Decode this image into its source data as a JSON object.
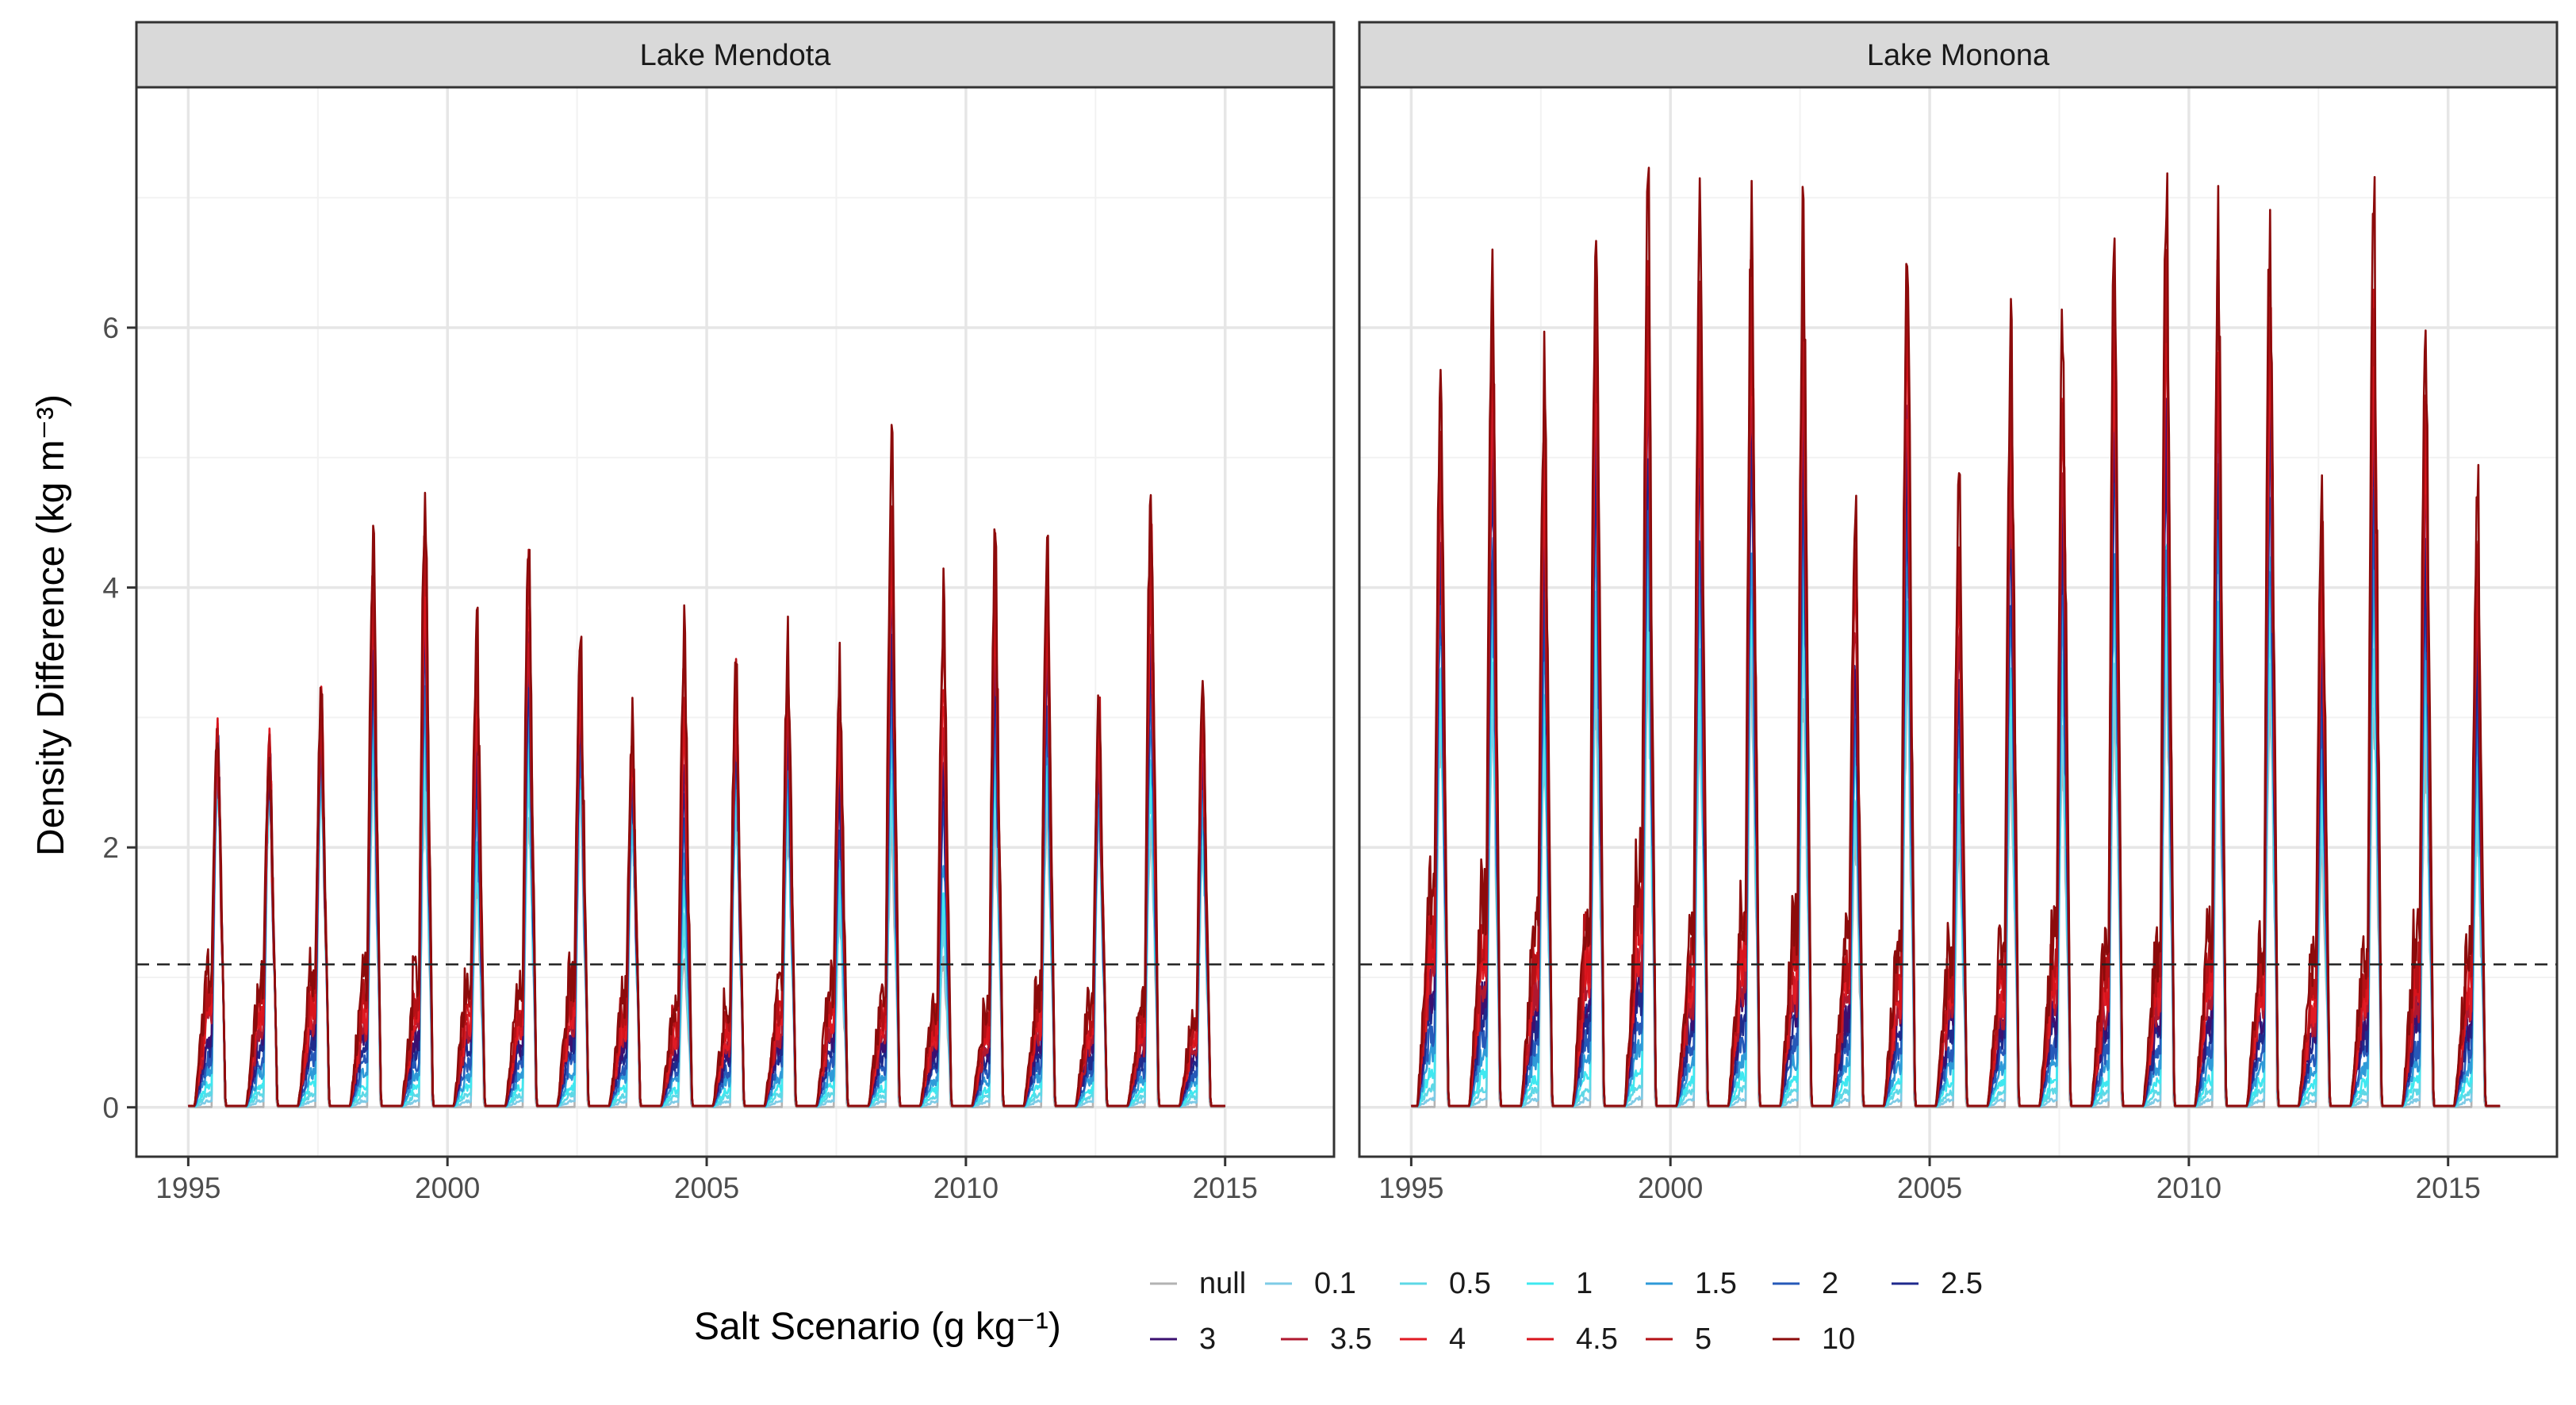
{
  "colors": {
    "grid_major": "#e6e6e6",
    "grid_minor": "#f2f2f2",
    "strip_fill": "#d9d9d9",
    "panel_border": "#333333",
    "threshold": "#222222"
  },
  "chart_data": {
    "type": "line",
    "facets": [
      "Lake Mendota",
      "Lake Monona"
    ],
    "xlabel": "",
    "ylabel": "Density Difference (kg m⁻³)",
    "x_ticks": [
      "1995",
      "2000",
      "2005",
      "2010",
      "2015"
    ],
    "y_ticks": [
      "0",
      "2",
      "4",
      "6"
    ],
    "xlim": [
      1994.0,
      2017.1
    ],
    "ylim": [
      -0.38,
      7.85
    ],
    "grid": true,
    "threshold_line": {
      "y": 1.1,
      "style": "dashed"
    },
    "legend": {
      "title": "Salt Scenario (g kg⁻¹)",
      "placement": "bottom",
      "entries": [
        {
          "name": "null",
          "color": "#b3b3b3"
        },
        {
          "name": "0.1",
          "color": "#7ecbe6"
        },
        {
          "name": "0.5",
          "color": "#5ed8e6"
        },
        {
          "name": "1",
          "color": "#3fe8f0"
        },
        {
          "name": "1.5",
          "color": "#2f9ad8"
        },
        {
          "name": "2",
          "color": "#2659b8"
        },
        {
          "name": "2.5",
          "color": "#1f2a8c"
        },
        {
          "name": "3",
          "color": "#3b1070"
        },
        {
          "name": "3.5",
          "color": "#b0182f"
        },
        {
          "name": "4",
          "color": "#e01b24"
        },
        {
          "name": "4.5",
          "color": "#d8141c"
        },
        {
          "name": "5",
          "color": "#b51116"
        },
        {
          "name": "10",
          "color": "#8c0b0b"
        }
      ]
    },
    "panels": [
      {
        "name": "Lake Mendota",
        "year_peaks_by_scenario_10": [
          3.1,
          3.0,
          3.4,
          4.6,
          5.15,
          3.95,
          4.7,
          3.95,
          3.2,
          3.95,
          3.7,
          3.85,
          3.7,
          5.45,
          4.2,
          4.8,
          4.65,
          3.4,
          5.3,
          3.55
        ],
        "year_peaks_null": [
          2.9,
          2.8,
          2.9,
          2.9,
          2.7,
          1.9,
          2.6,
          2.6,
          2.4,
          1.3,
          2.6,
          2.4,
          1.6,
          2.4,
          1.3,
          2.5,
          2.6,
          2.4,
          2.4,
          2.2
        ],
        "summer_baseline_by_scenario_10": [
          1.05,
          1.0,
          1.05,
          1.0,
          0.98,
          0.95,
          0.9,
          1.0,
          0.85,
          0.78,
          0.78,
          0.9,
          0.95,
          0.85,
          0.8,
          0.75,
          0.9,
          0.8,
          0.78,
          0.7
        ]
      },
      {
        "name": "Lake Monona",
        "year_peaks_by_scenario_10": [
          6.0,
          7.1,
          6.05,
          7.45,
          7.45,
          7.25,
          7.5,
          7.5,
          5.0,
          7.45,
          5.05,
          6.55,
          6.55,
          7.45,
          7.5,
          7.45,
          7.45,
          5.05,
          7.45,
          6.45,
          5.1
        ],
        "year_peaks_null": [
          3.2,
          3.3,
          2.9,
          3.6,
          3.7,
          3.3,
          3.7,
          3.6,
          2.3,
          3.6,
          2.3,
          3.0,
          3.0,
          3.6,
          3.7,
          3.6,
          3.6,
          2.2,
          3.5,
          3.0,
          2.4
        ],
        "summer_baseline_by_scenario_10": [
          1.7,
          1.6,
          1.4,
          1.5,
          1.8,
          1.3,
          1.5,
          1.4,
          1.3,
          1.2,
          1.2,
          1.2,
          1.3,
          1.2,
          1.2,
          1.3,
          1.25,
          1.1,
          1.2,
          1.3,
          1.2
        ]
      }
    ]
  }
}
